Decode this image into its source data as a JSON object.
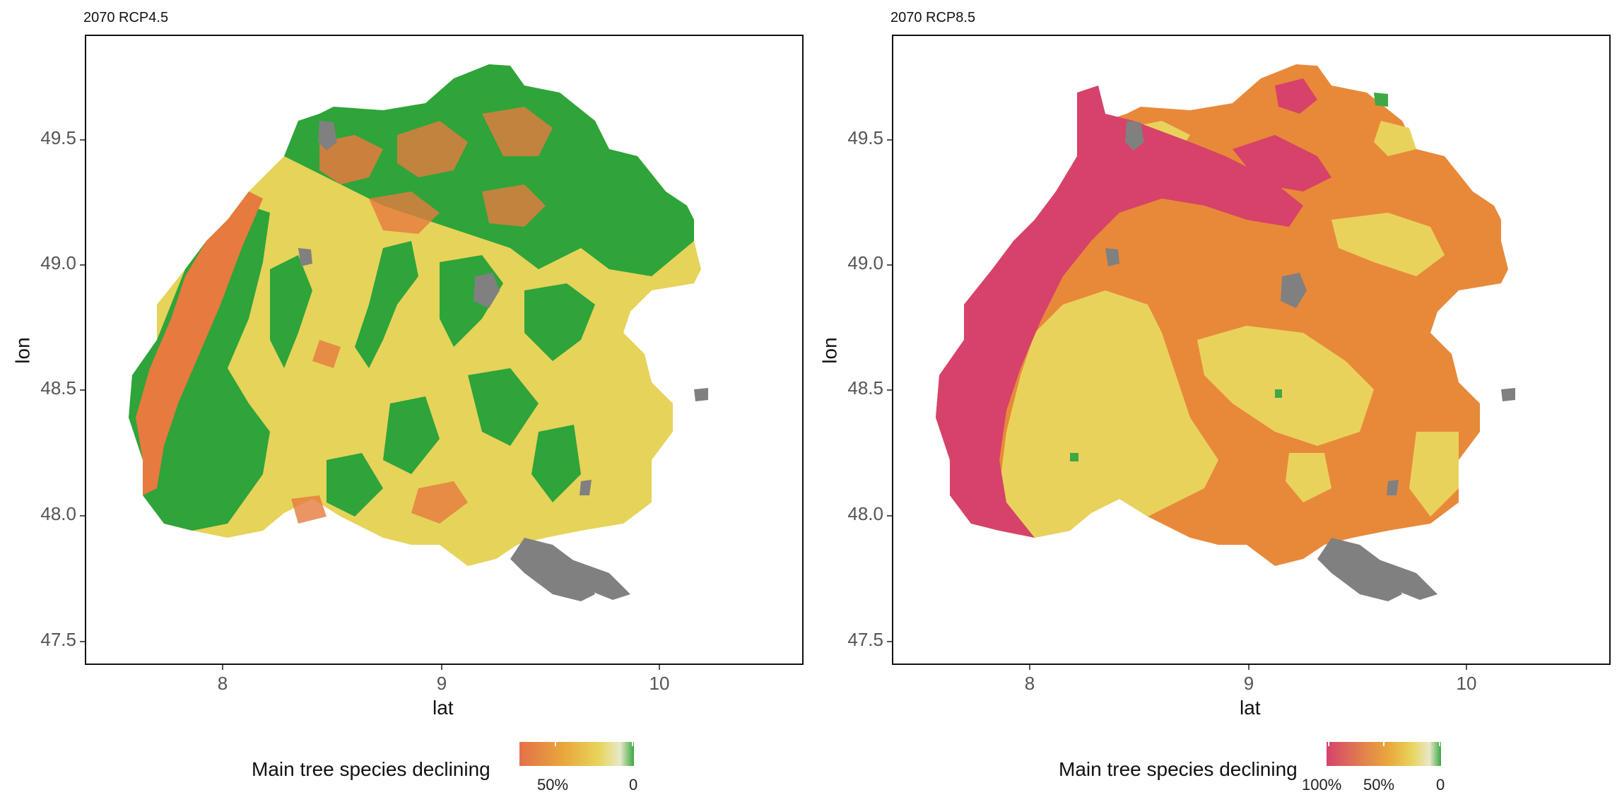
{
  "panels": [
    {
      "title": "2070 RCP4.5",
      "xlabel": "lat",
      "ylabel": "lon",
      "xticks": [
        "8",
        "9",
        "10"
      ],
      "yticks": [
        "49.5",
        "49.0",
        "48.5",
        "48.0",
        "47.5"
      ],
      "legend": {
        "title": "Main tree species declining",
        "labels": [
          "50%",
          "0"
        ],
        "colors": [
          "#e3704a",
          "#e9a93b",
          "#e8d55e",
          "#e8e8c8",
          "#3da844"
        ]
      },
      "palette": {
        "green": "#2ea43a",
        "orange": "#e67a3f",
        "yellow": "#e6d35a",
        "gray": "#808080"
      }
    },
    {
      "title": "2070 RCP8.5",
      "xlabel": "lat",
      "ylabel": "lon",
      "xticks": [
        "8",
        "9",
        "10"
      ],
      "yticks": [
        "49.5",
        "49.0",
        "48.5",
        "48.0",
        "47.5"
      ],
      "legend": {
        "title": "Main tree species declining",
        "labels": [
          "100%",
          "50%",
          "0"
        ],
        "colors": [
          "#d6426a",
          "#e2874a",
          "#e9a93b",
          "#e8d55e",
          "#e8e8c8",
          "#3da844"
        ]
      },
      "palette": {
        "magenta": "#d6426a",
        "orange": "#e8893a",
        "yellow": "#e9d25c",
        "green": "#3da844",
        "gray": "#808080"
      }
    }
  ]
}
